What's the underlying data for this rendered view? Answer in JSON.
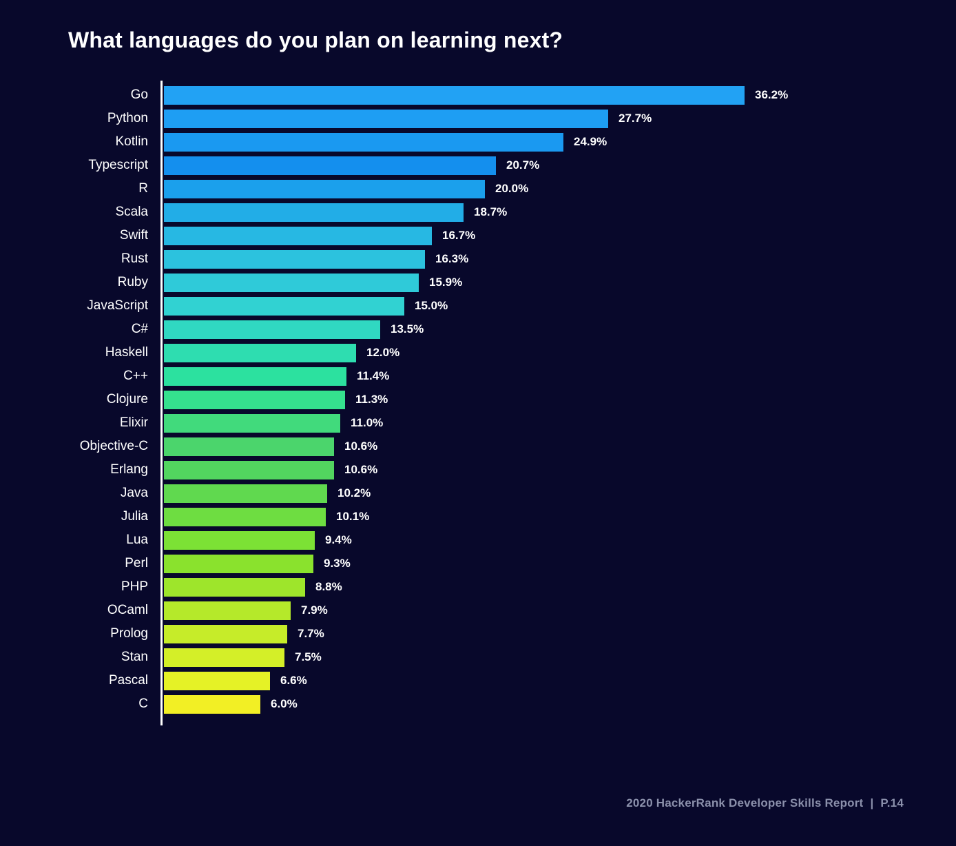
{
  "title": "What languages do you plan on learning next?",
  "footer": {
    "report": "2020 HackerRank Developer Skills Report",
    "separator": "|",
    "page": "P.14"
  },
  "colors": {
    "background": "#08082b",
    "title_text": "#ffffff",
    "category_text": "#ffffff",
    "value_text": "#ffffff",
    "axis_line": "#ffffff",
    "footer_text": "#8b90ab"
  },
  "chart_data": {
    "type": "bar",
    "orientation": "horizontal",
    "title": "What languages do you plan on learning next?",
    "xlabel": "",
    "ylabel": "",
    "xlim": [
      0,
      40
    ],
    "grid": false,
    "legend": false,
    "categories": [
      "Go",
      "Python",
      "Kotlin",
      "Typescript",
      "R",
      "Scala",
      "Swift",
      "Rust",
      "Ruby",
      "JavaScript",
      "C#",
      "Haskell",
      "C++",
      "Clojure",
      "Elixir",
      "Objective-C",
      "Erlang",
      "Java",
      "Julia",
      "Lua",
      "Perl",
      "PHP",
      "OCaml",
      "Prolog",
      "Stan",
      "Pascal",
      "C"
    ],
    "values": [
      36.2,
      27.7,
      24.9,
      20.7,
      20.0,
      18.7,
      16.7,
      16.3,
      15.9,
      15.0,
      13.5,
      12.0,
      11.4,
      11.3,
      11.0,
      10.6,
      10.6,
      10.2,
      10.1,
      9.4,
      9.3,
      8.8,
      7.9,
      7.7,
      7.5,
      6.6,
      6.0
    ],
    "value_labels": [
      "36.2%",
      "27.7%",
      "24.9%",
      "20.7%",
      "20.0%",
      "18.7%",
      "16.7%",
      "16.3%",
      "15.9%",
      "15.0%",
      "13.5%",
      "12.0%",
      "11.4%",
      "11.3%",
      "11.0%",
      "10.6%",
      "10.6%",
      "10.2%",
      "10.1%",
      "9.4%",
      "9.3%",
      "8.8%",
      "7.9%",
      "7.7%",
      "7.5%",
      "6.6%",
      "6.0%"
    ],
    "bar_colors": [
      "#22a2f4",
      "#1e9ef3",
      "#1a99f1",
      "#148fee",
      "#1ba0ec",
      "#22ade7",
      "#27b8e3",
      "#2cc2de",
      "#2fcad9",
      "#31d2d2",
      "#30d8c2",
      "#2eddb0",
      "#2ce19f",
      "#35e18e",
      "#41da7c",
      "#4bd56c",
      "#52d55f",
      "#60d94f",
      "#6edd41",
      "#7ce135",
      "#8ae22d",
      "#9ee52b",
      "#b5e92a",
      "#c6ec29",
      "#d4ef28",
      "#e5f226",
      "#f2ef25"
    ]
  }
}
